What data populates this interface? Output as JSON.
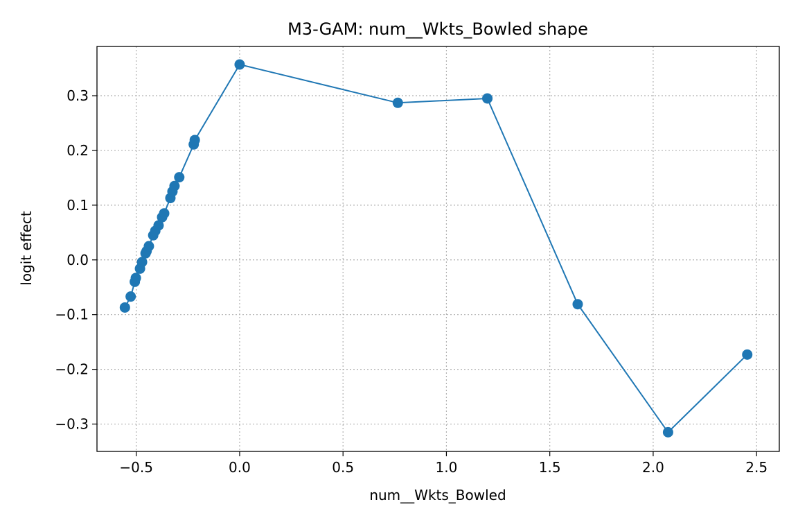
{
  "chart_data": {
    "type": "line",
    "title": "M3-GAM: num__Wkts_Bowled shape",
    "xlabel": "num__Wkts_Bowled",
    "ylabel": "logit effect",
    "xlim": [
      -0.69,
      2.61
    ],
    "ylim": [
      -0.35,
      0.39
    ],
    "grid": true,
    "x_ticks": [
      -0.5,
      0.0,
      0.5,
      1.0,
      1.5,
      2.0,
      2.5
    ],
    "x_tick_labels": [
      "−0.5",
      "0.0",
      "0.5",
      "1.0",
      "1.5",
      "2.0",
      "2.5"
    ],
    "y_ticks": [
      -0.3,
      -0.2,
      -0.1,
      0.0,
      0.1,
      0.2,
      0.3
    ],
    "y_tick_labels": [
      "−0.3",
      "−0.2",
      "−0.1",
      "0.0",
      "0.1",
      "0.2",
      "0.3"
    ],
    "series": [
      {
        "color": "#1f77b4",
        "marker": "circle",
        "x": [
          -0.555,
          -0.527,
          -0.507,
          -0.502,
          -0.482,
          -0.472,
          -0.455,
          -0.45,
          -0.439,
          -0.418,
          -0.408,
          -0.392,
          -0.375,
          -0.365,
          -0.335,
          -0.325,
          -0.315,
          -0.292,
          -0.222,
          -0.217,
          0.0,
          0.765,
          1.198,
          1.635,
          2.072,
          2.455
        ],
        "y": [
          -0.087,
          -0.067,
          -0.04,
          -0.033,
          -0.016,
          -0.004,
          0.012,
          0.016,
          0.025,
          0.045,
          0.053,
          0.063,
          0.078,
          0.085,
          0.113,
          0.125,
          0.135,
          0.151,
          0.211,
          0.219,
          0.357,
          0.287,
          0.295,
          -0.081,
          -0.315,
          -0.173
        ]
      }
    ]
  }
}
